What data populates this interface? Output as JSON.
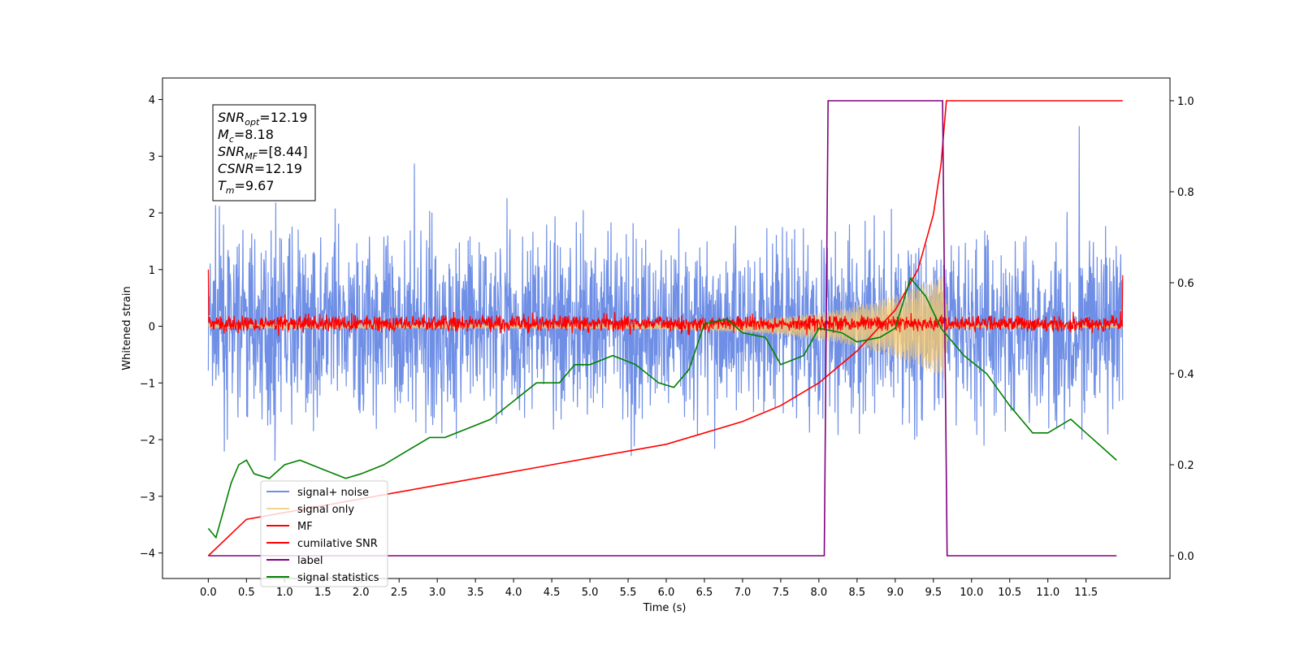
{
  "chart_data": {
    "type": "line",
    "xlabel": "Time (s)",
    "ylabel": "Whitened strain",
    "xlim": [
      -0.6,
      12.6
    ],
    "ylim": [
      -4.45,
      4.38
    ],
    "y2lim": [
      -0.05,
      1.05
    ],
    "x_ticks": [
      0.0,
      0.5,
      1.0,
      1.5,
      2.0,
      2.5,
      3.0,
      3.5,
      4.0,
      4.5,
      5.0,
      5.5,
      6.0,
      6.5,
      7.0,
      7.5,
      8.0,
      8.5,
      9.0,
      9.5,
      10.0,
      10.5,
      11.0,
      11.5
    ],
    "x_tick_labels": [
      "0.0",
      "0.5",
      "1.0",
      "1.5",
      "2.0",
      "2.5",
      "3.0",
      "3.5",
      "4.0",
      "4.5",
      "5.0",
      "5.5",
      "6.0",
      "6.5",
      "7.0",
      "7.5",
      "8.0",
      "8.5",
      "9.0",
      "9.5",
      "10.0",
      "10.5",
      "11.0",
      "11.5"
    ],
    "y_ticks": [
      4,
      3,
      2,
      1,
      0,
      -1,
      -2,
      -3,
      -4
    ],
    "y_tick_labels": [
      "4",
      "3",
      "2",
      "1",
      "0",
      "−1",
      "−2",
      "−3",
      "−4"
    ],
    "y2_ticks": [
      1.0,
      0.8,
      0.6,
      0.4,
      0.2,
      0.0
    ],
    "y2_tick_labels": [
      "1.0",
      "0.8",
      "0.6",
      "0.4",
      "0.2",
      "0.0"
    ],
    "grid": false,
    "legend_position": "lower-left",
    "annotation_box": {
      "lines": [
        {
          "symbol": "SNR",
          "sub": "opt",
          "value": "=12.19"
        },
        {
          "symbol": "M",
          "sub": "c",
          "value": "=8.18"
        },
        {
          "symbol": "SNR",
          "sub": "MF",
          "value": "=[8.44]"
        },
        {
          "symbol": "CSNR",
          "sub": "",
          "value": "=12.19"
        },
        {
          "symbol": "T",
          "sub": "m",
          "value": "=9.67"
        }
      ]
    },
    "series": [
      {
        "name": "signal+ noise",
        "color": "#6f8fe6",
        "axis": "left",
        "kind": "noise",
        "x_range": [
          0.0,
          11.98
        ],
        "approx_range": [
          -4.2,
          4.0
        ],
        "typical_range": [
          -2.2,
          2.3
        ]
      },
      {
        "name": "signal only",
        "color": "#f4c870",
        "axis": "left",
        "kind": "chirp",
        "x_range": [
          0.0,
          11.98
        ],
        "envelope_peak_x": 9.65,
        "envelope_peak_amplitude": 0.9
      },
      {
        "name": "MF",
        "color": "#ff0000",
        "axis": "left",
        "kind": "noise",
        "x_range": [
          0.0,
          11.98
        ],
        "approx_range": [
          -0.15,
          0.35
        ],
        "endpoints": {
          "start": 1.0,
          "end": 0.9
        }
      },
      {
        "name": "cumilative SNR",
        "color": "#ff0000",
        "axis": "right",
        "x": [
          0.0,
          0.5,
          1.0,
          1.5,
          2.0,
          2.5,
          3.0,
          3.5,
          4.0,
          4.5,
          5.0,
          5.5,
          6.0,
          6.5,
          7.0,
          7.5,
          8.0,
          8.5,
          9.0,
          9.3,
          9.5,
          9.6,
          9.67,
          10.0,
          11.0,
          11.98
        ],
        "values": [
          0.0,
          0.08,
          0.095,
          0.11,
          0.125,
          0.14,
          0.155,
          0.17,
          0.185,
          0.2,
          0.215,
          0.23,
          0.245,
          0.27,
          0.295,
          0.33,
          0.38,
          0.45,
          0.54,
          0.63,
          0.75,
          0.86,
          1.0,
          1.0,
          1.0,
          1.0
        ]
      },
      {
        "name": "label",
        "color": "#800080",
        "axis": "right",
        "x": [
          0.0,
          8.07,
          8.12,
          9.62,
          9.68,
          11.9
        ],
        "values": [
          0.0,
          0.0,
          1.0,
          1.0,
          0.0,
          0.0
        ]
      },
      {
        "name": "signal statistics",
        "color": "#008000",
        "axis": "right",
        "x": [
          0.0,
          0.1,
          0.2,
          0.3,
          0.4,
          0.5,
          0.6,
          0.8,
          1.0,
          1.2,
          1.5,
          1.8,
          2.0,
          2.3,
          2.6,
          2.9,
          3.1,
          3.4,
          3.7,
          4.0,
          4.3,
          4.6,
          4.8,
          5.0,
          5.3,
          5.6,
          5.9,
          6.1,
          6.3,
          6.4,
          6.5,
          6.8,
          7.0,
          7.3,
          7.5,
          7.8,
          8.0,
          8.3,
          8.5,
          8.8,
          9.0,
          9.2,
          9.4,
          9.6,
          9.9,
          10.2,
          10.5,
          10.8,
          11.0,
          11.3,
          11.5,
          11.9
        ],
        "values": [
          0.06,
          0.04,
          0.1,
          0.16,
          0.2,
          0.21,
          0.18,
          0.17,
          0.2,
          0.21,
          0.19,
          0.17,
          0.18,
          0.2,
          0.23,
          0.26,
          0.26,
          0.28,
          0.3,
          0.34,
          0.38,
          0.38,
          0.42,
          0.42,
          0.44,
          0.42,
          0.38,
          0.37,
          0.41,
          0.46,
          0.51,
          0.52,
          0.49,
          0.48,
          0.42,
          0.44,
          0.5,
          0.49,
          0.47,
          0.48,
          0.5,
          0.61,
          0.57,
          0.5,
          0.44,
          0.4,
          0.33,
          0.27,
          0.27,
          0.3,
          0.27,
          0.21
        ]
      }
    ]
  }
}
